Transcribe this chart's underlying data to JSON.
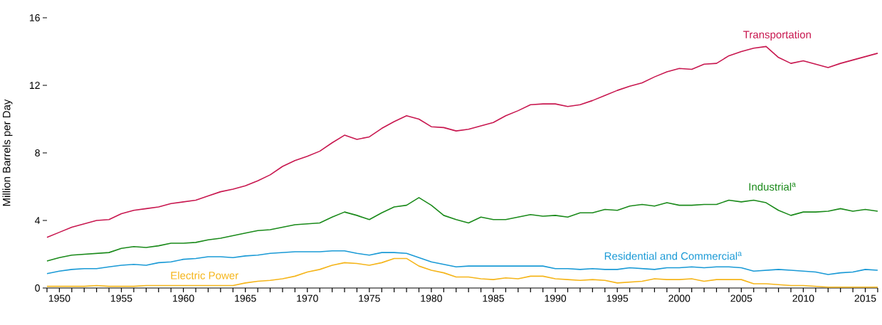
{
  "chart_data": {
    "type": "line",
    "ylabel": "Million Barrels per Day",
    "x": [
      1949,
      1950,
      1951,
      1952,
      1953,
      1954,
      1955,
      1956,
      1957,
      1958,
      1959,
      1960,
      1961,
      1962,
      1963,
      1964,
      1965,
      1966,
      1967,
      1968,
      1969,
      1970,
      1971,
      1972,
      1973,
      1974,
      1975,
      1976,
      1977,
      1978,
      1979,
      1980,
      1981,
      1982,
      1983,
      1984,
      1985,
      1986,
      1987,
      1988,
      1989,
      1990,
      1991,
      1992,
      1993,
      1994,
      1995,
      1996,
      1997,
      1998,
      1999,
      2000,
      2001,
      2002,
      2003,
      2004,
      2005,
      2006,
      2007,
      2008,
      2009,
      2010,
      2011,
      2012,
      2013,
      2014,
      2015,
      2016
    ],
    "series": [
      {
        "name": "Transportation",
        "color": "#c8174f",
        "values": [
          3.0,
          3.3,
          3.6,
          3.8,
          4.0,
          4.05,
          4.4,
          4.6,
          4.7,
          4.8,
          5.0,
          5.1,
          5.2,
          5.45,
          5.7,
          5.85,
          6.05,
          6.35,
          6.7,
          7.2,
          7.55,
          7.8,
          8.1,
          8.6,
          9.05,
          8.8,
          8.95,
          9.45,
          9.85,
          10.2,
          10.0,
          9.55,
          9.5,
          9.3,
          9.4,
          9.6,
          9.8,
          10.2,
          10.5,
          10.85,
          10.9,
          10.9,
          10.75,
          10.85,
          11.1,
          11.4,
          11.7,
          11.95,
          12.15,
          12.5,
          12.8,
          13.0,
          12.95,
          13.25,
          13.3,
          13.75,
          14.0,
          14.2,
          14.3,
          13.65,
          13.3,
          13.45,
          13.25,
          13.05,
          13.3,
          13.5,
          13.7,
          13.9
        ]
      },
      {
        "name": "Industrial$^{a}$",
        "color": "#1a8a1a",
        "values": [
          1.6,
          1.8,
          1.95,
          2.0,
          2.05,
          2.1,
          2.35,
          2.45,
          2.4,
          2.5,
          2.65,
          2.65,
          2.7,
          2.85,
          2.95,
          3.1,
          3.25,
          3.4,
          3.45,
          3.6,
          3.75,
          3.8,
          3.85,
          4.2,
          4.5,
          4.3,
          4.05,
          4.45,
          4.8,
          4.9,
          5.35,
          4.9,
          4.3,
          4.05,
          3.85,
          4.2,
          4.05,
          4.05,
          4.2,
          4.35,
          4.25,
          4.3,
          4.2,
          4.45,
          4.45,
          4.65,
          4.6,
          4.85,
          4.95,
          4.85,
          5.05,
          4.9,
          4.9,
          4.95,
          4.95,
          5.2,
          5.1,
          5.2,
          5.05,
          4.6,
          4.3,
          4.5,
          4.5,
          4.55,
          4.7,
          4.55,
          4.65,
          4.55
        ]
      },
      {
        "name": "Residential and Commercial$^{a}$",
        "color": "#1a9ad6",
        "values": [
          0.85,
          1.0,
          1.1,
          1.15,
          1.15,
          1.25,
          1.35,
          1.4,
          1.35,
          1.5,
          1.55,
          1.7,
          1.75,
          1.85,
          1.85,
          1.8,
          1.9,
          1.95,
          2.05,
          2.1,
          2.15,
          2.15,
          2.15,
          2.2,
          2.2,
          2.05,
          1.95,
          2.1,
          2.1,
          2.05,
          1.8,
          1.55,
          1.4,
          1.25,
          1.3,
          1.3,
          1.3,
          1.3,
          1.3,
          1.3,
          1.3,
          1.15,
          1.15,
          1.1,
          1.15,
          1.1,
          1.1,
          1.2,
          1.15,
          1.1,
          1.2,
          1.2,
          1.25,
          1.2,
          1.25,
          1.25,
          1.2,
          1.0,
          1.05,
          1.1,
          1.05,
          1.0,
          0.95,
          0.8,
          0.9,
          0.95,
          1.1,
          1.05
        ]
      },
      {
        "name": "Electric Power",
        "color": "#f5b51a",
        "values": [
          0.1,
          0.1,
          0.1,
          0.1,
          0.15,
          0.1,
          0.1,
          0.1,
          0.15,
          0.15,
          0.15,
          0.15,
          0.15,
          0.15,
          0.15,
          0.15,
          0.3,
          0.4,
          0.45,
          0.55,
          0.7,
          0.95,
          1.1,
          1.35,
          1.5,
          1.45,
          1.35,
          1.5,
          1.75,
          1.75,
          1.3,
          1.05,
          0.9,
          0.65,
          0.65,
          0.55,
          0.5,
          0.6,
          0.55,
          0.7,
          0.7,
          0.55,
          0.5,
          0.45,
          0.5,
          0.45,
          0.3,
          0.35,
          0.4,
          0.55,
          0.5,
          0.5,
          0.55,
          0.4,
          0.5,
          0.5,
          0.5,
          0.25,
          0.25,
          0.2,
          0.15,
          0.15,
          0.1,
          0.05,
          0.05,
          0.05,
          0.05,
          0.05
        ]
      }
    ],
    "xlim": [
      1949,
      2016
    ],
    "ylim": [
      0,
      16
    ],
    "yticks": [
      0,
      4,
      8,
      12,
      16
    ],
    "xticks": [
      {
        "value": 1949,
        "label": null
      },
      1950,
      {
        "value": 1951,
        "label": null
      },
      {
        "value": 1952,
        "label": null
      },
      {
        "value": 1953,
        "label": null
      },
      {
        "value": 1954,
        "label": null
      },
      1955,
      {
        "value": 1956,
        "label": null
      },
      {
        "value": 1957,
        "label": null
      },
      {
        "value": 1958,
        "label": null
      },
      {
        "value": 1959,
        "label": null
      },
      1960,
      {
        "value": 1961,
        "label": null
      },
      {
        "value": 1962,
        "label": null
      },
      {
        "value": 1963,
        "label": null
      },
      {
        "value": 1964,
        "label": null
      },
      1965,
      {
        "value": 1966,
        "label": null
      },
      {
        "value": 1967,
        "label": null
      },
      {
        "value": 1968,
        "label": null
      },
      {
        "value": 1969,
        "label": null
      },
      1970,
      {
        "value": 1971,
        "label": null
      },
      {
        "value": 1972,
        "label": null
      },
      {
        "value": 1973,
        "label": null
      },
      {
        "value": 1974,
        "label": null
      },
      1975,
      {
        "value": 1976,
        "label": null
      },
      {
        "value": 1977,
        "label": null
      },
      {
        "value": 1978,
        "label": null
      },
      {
        "value": 1979,
        "label": null
      },
      1980,
      {
        "value": 1981,
        "label": null
      },
      {
        "value": 1982,
        "label": null
      },
      {
        "value": 1983,
        "label": null
      },
      {
        "value": 1984,
        "label": null
      },
      1985,
      {
        "value": 1986,
        "label": null
      },
      {
        "value": 1987,
        "label": null
      },
      {
        "value": 1988,
        "label": null
      },
      {
        "value": 1989,
        "label": null
      },
      1990,
      {
        "value": 1991,
        "label": null
      },
      {
        "value": 1992,
        "label": null
      },
      {
        "value": 1993,
        "label": null
      },
      {
        "value": 1994,
        "label": null
      },
      1995,
      {
        "value": 1996,
        "label": null
      },
      {
        "value": 1997,
        "label": null
      },
      {
        "value": 1998,
        "label": null
      },
      {
        "value": 1999,
        "label": null
      },
      2000,
      {
        "value": 2001,
        "label": null
      },
      {
        "value": 2002,
        "label": null
      },
      {
        "value": 2003,
        "label": null
      },
      {
        "value": 2004,
        "label": null
      },
      2005,
      {
        "value": 2006,
        "label": null
      },
      {
        "value": 2007,
        "label": null
      },
      {
        "value": 2008,
        "label": null
      },
      {
        "value": 2009,
        "label": null
      },
      2010,
      {
        "value": 2011,
        "label": null
      },
      {
        "value": 2012,
        "label": null
      },
      {
        "value": 2013,
        "label": null
      },
      {
        "value": 2014,
        "label": null
      },
      2015,
      {
        "value": 2016,
        "label": null
      }
    ],
    "grid": false,
    "legend": false,
    "marker": "none",
    "line_style": "solid"
  }
}
